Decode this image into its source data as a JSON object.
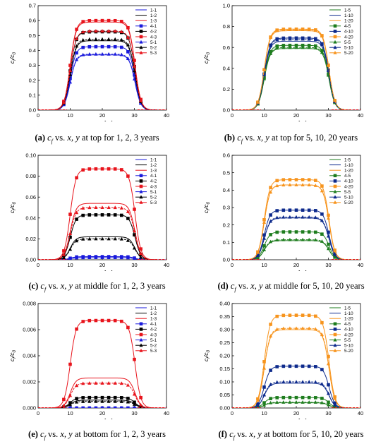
{
  "colors": {
    "black": "#000000",
    "red": "#e8141c",
    "blue": "#1a1adc",
    "orange": "#f7941d",
    "green": "#1e7d1e",
    "navy": "#0d2a8c"
  },
  "chart_data": [
    {
      "type": "line",
      "letter": "(a)",
      "caption_tail": "at top for 1, 2, 3 years",
      "xlabel": "x, y (m)",
      "ylabel": "c_f/c_0",
      "xlim": [
        0,
        40
      ],
      "ylim": [
        0,
        0.7
      ],
      "xticks": [
        0,
        10,
        20,
        30,
        40
      ],
      "yticks": [
        0,
        0.1,
        0.2,
        0.3,
        0.4,
        0.5,
        0.6,
        0.7
      ],
      "ytick_labels": [
        "0.0",
        "0.1",
        "0.2",
        "0.3",
        "0.4",
        "0.5",
        "0.6",
        "0.7"
      ],
      "series": [
        {
          "name": "1-1",
          "color": "#1a1adc",
          "marker": "none",
          "plateau": 0.37
        },
        {
          "name": "1-2",
          "color": "#000000",
          "marker": "none",
          "plateau": 0.465
        },
        {
          "name": "1-3",
          "color": "#e8141c",
          "marker": "none",
          "plateau": 0.59
        },
        {
          "name": "4-1",
          "color": "#1a1adc",
          "marker": "square",
          "plateau": 0.425
        },
        {
          "name": "4-2",
          "color": "#000000",
          "marker": "square",
          "plateau": 0.525
        },
        {
          "name": "4-3",
          "color": "#e8141c",
          "marker": "square",
          "plateau": 0.6
        },
        {
          "name": "5-1",
          "color": "#1a1adc",
          "marker": "triangle",
          "plateau": 0.375
        },
        {
          "name": "5-2",
          "color": "#000000",
          "marker": "triangle",
          "plateau": 0.475
        },
        {
          "name": "5-3",
          "color": "#e8141c",
          "marker": "triangle",
          "plateau": 0.53
        }
      ]
    },
    {
      "type": "line",
      "letter": "(b)",
      "caption_tail": "at top for 5, 10, 20 years",
      "xlabel": "x, y (m)",
      "ylabel": "c_f/c_0",
      "xlim": [
        0,
        40
      ],
      "ylim": [
        0,
        1.0
      ],
      "xticks": [
        0,
        10,
        20,
        30,
        40
      ],
      "yticks": [
        0,
        0.2,
        0.4,
        0.6,
        0.8,
        1.0
      ],
      "ytick_labels": [
        "0.0",
        "0.2",
        "0.4",
        "0.6",
        "0.8",
        "1.0"
      ],
      "series": [
        {
          "name": "1-5",
          "color": "#1e7d1e",
          "marker": "none",
          "plateau": 0.59
        },
        {
          "name": "1-10",
          "color": "#0d2a8c",
          "marker": "none",
          "plateau": 0.66
        },
        {
          "name": "1-20",
          "color": "#f7941d",
          "marker": "none",
          "plateau": 0.76
        },
        {
          "name": "4-5",
          "color": "#1e7d1e",
          "marker": "square",
          "plateau": 0.62
        },
        {
          "name": "4-10",
          "color": "#0d2a8c",
          "marker": "square",
          "plateau": 0.69
        },
        {
          "name": "4-20",
          "color": "#f7941d",
          "marker": "square",
          "plateau": 0.775
        },
        {
          "name": "5-5",
          "color": "#1e7d1e",
          "marker": "triangle",
          "plateau": 0.6
        },
        {
          "name": "5-10",
          "color": "#0d2a8c",
          "marker": "triangle",
          "plateau": 0.68
        },
        {
          "name": "5-20",
          "color": "#f7941d",
          "marker": "triangle",
          "plateau": 0.77
        }
      ]
    },
    {
      "type": "line",
      "letter": "(c)",
      "caption_tail": "at middle for 1, 2, 3 years",
      "xlabel": "x, y (m)",
      "ylabel": "c_f/c_0",
      "xlim": [
        0,
        40
      ],
      "ylim": [
        0,
        0.1
      ],
      "xticks": [
        0,
        10,
        20,
        30,
        40
      ],
      "yticks": [
        0,
        0.02,
        0.04,
        0.06,
        0.08,
        0.1
      ],
      "ytick_labels": [
        "0.00",
        "0.02",
        "0.04",
        "0.06",
        "0.08",
        "0.10"
      ],
      "series": [
        {
          "name": "1-1",
          "color": "#1a1adc",
          "marker": "none",
          "plateau": 0.002
        },
        {
          "name": "1-2",
          "color": "#000000",
          "marker": "none",
          "plateau": 0.022
        },
        {
          "name": "1-3",
          "color": "#e8141c",
          "marker": "none",
          "plateau": 0.054
        },
        {
          "name": "4-1",
          "color": "#1a1adc",
          "marker": "square",
          "plateau": 0.003
        },
        {
          "name": "4-2",
          "color": "#000000",
          "marker": "square",
          "plateau": 0.043
        },
        {
          "name": "4-3",
          "color": "#e8141c",
          "marker": "square",
          "plateau": 0.087
        },
        {
          "name": "5-1",
          "color": "#1a1adc",
          "marker": "triangle",
          "plateau": 0.002
        },
        {
          "name": "5-2",
          "color": "#000000",
          "marker": "triangle",
          "plateau": 0.02
        },
        {
          "name": "5-3",
          "color": "#e8141c",
          "marker": "triangle",
          "plateau": 0.05
        }
      ]
    },
    {
      "type": "line",
      "letter": "(d)",
      "caption_tail": "at middle for 5, 10, 20 years",
      "xlabel": "x, y (m)",
      "ylabel": "c_f/c_0",
      "xlim": [
        0,
        40
      ],
      "ylim": [
        0,
        0.6
      ],
      "xticks": [
        0,
        10,
        20,
        30,
        40
      ],
      "yticks": [
        0,
        0.1,
        0.2,
        0.3,
        0.4,
        0.5,
        0.6
      ],
      "ytick_labels": [
        "0.0",
        "0.1",
        "0.2",
        "0.3",
        "0.4",
        "0.5",
        "0.6"
      ],
      "series": [
        {
          "name": "1-5",
          "color": "#1e7d1e",
          "marker": "none",
          "plateau": 0.11
        },
        {
          "name": "1-10",
          "color": "#0d2a8c",
          "marker": "none",
          "plateau": 0.24
        },
        {
          "name": "1-20",
          "color": "#f7941d",
          "marker": "none",
          "plateau": 0.43
        },
        {
          "name": "4-5",
          "color": "#1e7d1e",
          "marker": "square",
          "plateau": 0.16
        },
        {
          "name": "4-10",
          "color": "#0d2a8c",
          "marker": "square",
          "plateau": 0.285
        },
        {
          "name": "4-20",
          "color": "#f7941d",
          "marker": "square",
          "plateau": 0.46
        },
        {
          "name": "5-5",
          "color": "#1e7d1e",
          "marker": "triangle",
          "plateau": 0.115
        },
        {
          "name": "5-10",
          "color": "#0d2a8c",
          "marker": "triangle",
          "plateau": 0.245
        },
        {
          "name": "5-20",
          "color": "#f7941d",
          "marker": "triangle",
          "plateau": 0.43
        }
      ]
    },
    {
      "type": "line",
      "letter": "(e)",
      "caption_tail": "at bottom for 1, 2, 3 years",
      "xlabel": "x, y (m)",
      "ylabel": "c_f/c_0",
      "xlim": [
        0,
        40
      ],
      "ylim": [
        0,
        0.008
      ],
      "xticks": [
        0,
        10,
        20,
        30,
        40
      ],
      "yticks": [
        0,
        0.002,
        0.004,
        0.006,
        0.008
      ],
      "ytick_labels": [
        "0.000",
        "0.002",
        "0.004",
        "0.006",
        "0.008"
      ],
      "series": [
        {
          "name": "1-1",
          "color": "#1a1adc",
          "marker": "none",
          "plateau": 0.0
        },
        {
          "name": "1-2",
          "color": "#000000",
          "marker": "none",
          "plateau": 0.0006
        },
        {
          "name": "1-3",
          "color": "#e8141c",
          "marker": "none",
          "plateau": 0.0023
        },
        {
          "name": "4-1",
          "color": "#1a1adc",
          "marker": "square",
          "plateau": 0.0
        },
        {
          "name": "4-2",
          "color": "#000000",
          "marker": "square",
          "plateau": 0.0008
        },
        {
          "name": "4-3",
          "color": "#e8141c",
          "marker": "square",
          "plateau": 0.0067
        },
        {
          "name": "5-1",
          "color": "#1a1adc",
          "marker": "triangle",
          "plateau": 0.0
        },
        {
          "name": "5-2",
          "color": "#000000",
          "marker": "triangle",
          "plateau": 0.0005
        },
        {
          "name": "5-3",
          "color": "#e8141c",
          "marker": "triangle",
          "plateau": 0.0019
        }
      ]
    },
    {
      "type": "line",
      "letter": "(f)",
      "caption_tail": "at bottom for 5, 10, 20 years",
      "xlabel": "x, y (m)",
      "ylabel": "c_f/c_0",
      "xlim": [
        0,
        40
      ],
      "ylim": [
        0,
        0.4
      ],
      "xticks": [
        0,
        10,
        20,
        30,
        40
      ],
      "yticks": [
        0,
        0.05,
        0.1,
        0.15,
        0.2,
        0.25,
        0.3,
        0.35,
        0.4
      ],
      "ytick_labels": [
        "0.00",
        "0.05",
        "0.10",
        "0.15",
        "0.20",
        "0.25",
        "0.30",
        "0.35",
        "0.40"
      ],
      "series": [
        {
          "name": "1-5",
          "color": "#1e7d1e",
          "marker": "none",
          "plateau": 0.02
        },
        {
          "name": "1-10",
          "color": "#0d2a8c",
          "marker": "none",
          "plateau": 0.095
        },
        {
          "name": "1-20",
          "color": "#f7941d",
          "marker": "none",
          "plateau": 0.3
        },
        {
          "name": "4-5",
          "color": "#1e7d1e",
          "marker": "square",
          "plateau": 0.04
        },
        {
          "name": "4-10",
          "color": "#0d2a8c",
          "marker": "square",
          "plateau": 0.16
        },
        {
          "name": "4-20",
          "color": "#f7941d",
          "marker": "square",
          "plateau": 0.355
        },
        {
          "name": "5-5",
          "color": "#1e7d1e",
          "marker": "triangle",
          "plateau": 0.022
        },
        {
          "name": "5-10",
          "color": "#0d2a8c",
          "marker": "triangle",
          "plateau": 0.1
        },
        {
          "name": "5-20",
          "color": "#f7941d",
          "marker": "triangle",
          "plateau": 0.305
        }
      ]
    }
  ],
  "caption_vs": "vs."
}
